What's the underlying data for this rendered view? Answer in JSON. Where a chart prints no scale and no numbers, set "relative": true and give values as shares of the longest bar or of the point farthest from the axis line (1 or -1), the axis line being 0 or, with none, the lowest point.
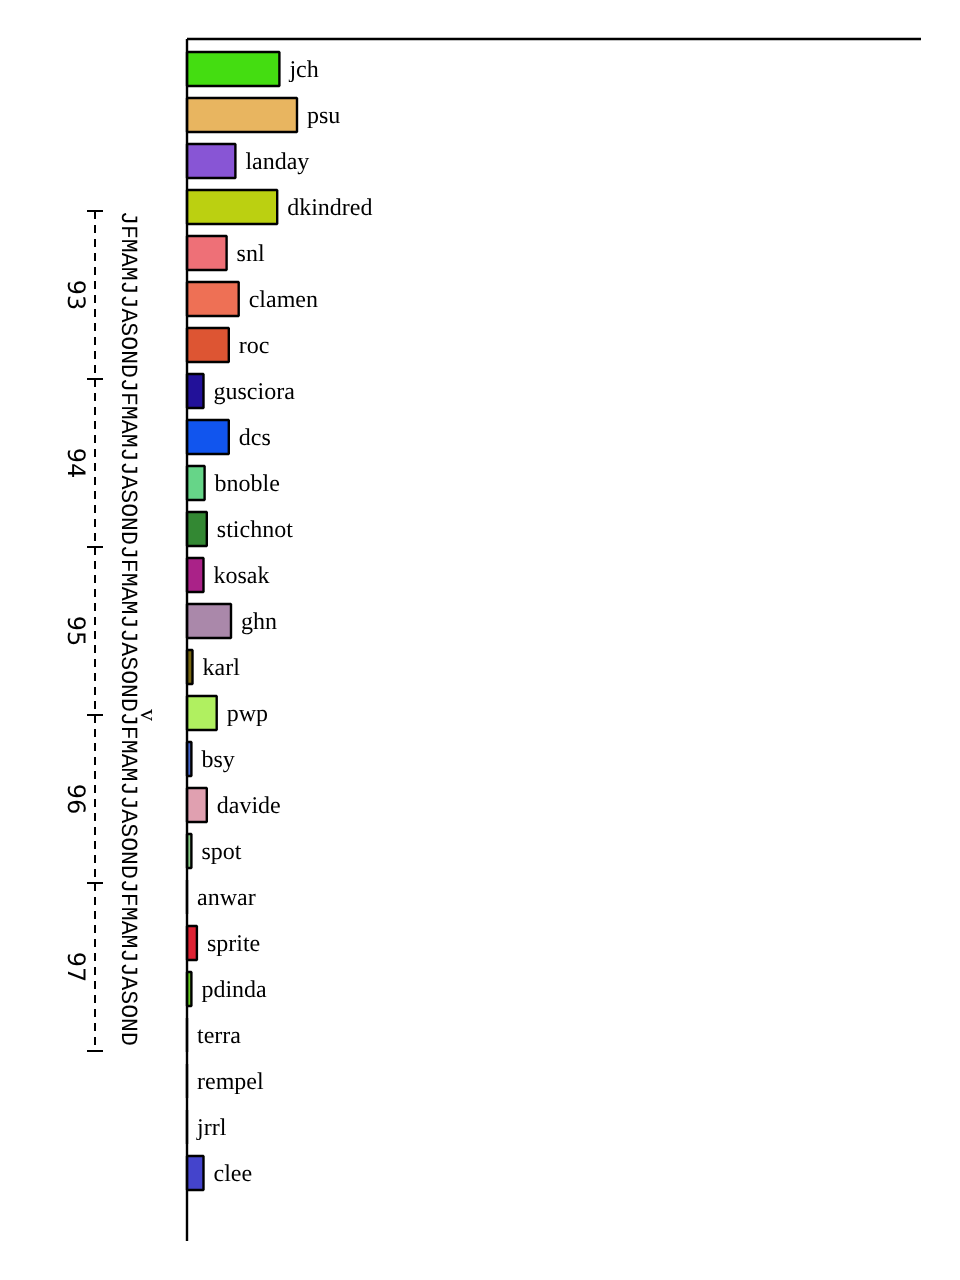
{
  "chart_data": {
    "type": "bar",
    "orientation": "horizontal",
    "relative": true,
    "data_labels": false,
    "categories": [
      "jch",
      "psu",
      "landay",
      "dkindred",
      "snl",
      "clamen",
      "roc",
      "gusciora",
      "dcs",
      "bnoble",
      "stichnot",
      "kosak",
      "ghn",
      "karl",
      "pwp",
      "bsy",
      "davide",
      "spot",
      "anwar",
      "sprite",
      "pdinda",
      "terra",
      "rempel",
      "jrrl",
      "clee"
    ],
    "values": [
      0.84,
      1,
      0.44,
      0.82,
      0.36,
      0.47,
      0.38,
      0.15,
      0.38,
      0.16,
      0.18,
      0.15,
      0.4,
      0.05,
      0.27,
      0.04,
      0.18,
      0.04,
      0,
      0.09,
      0.04,
      0,
      0,
      0,
      0.15
    ],
    "colors": [
      "#44dd11",
      "#e8b560",
      "#8855d5",
      "#bbd011",
      "#ee7077",
      "#ee7055",
      "#dd5533",
      "#221199",
      "#1155ee",
      "#66d588",
      "#338833",
      "#aa2288",
      "#aa88aa",
      "#776611",
      "#b0f060",
      "#4466cc",
      "#e0a0b0",
      "#88cc88",
      "#cccccc",
      "#dd2233",
      "#66cc22",
      "#cccccc",
      "#cccccc",
      "#cccccc",
      "#4444cc"
    ],
    "annotations": [
      "JFMAMJJASONDJFMAMJJASONDJFMAMJJASONDJFMAMJJASONDJFMAMJJASOND",
      "93",
      "94",
      "95",
      "96",
      "97",
      "v"
    ]
  }
}
